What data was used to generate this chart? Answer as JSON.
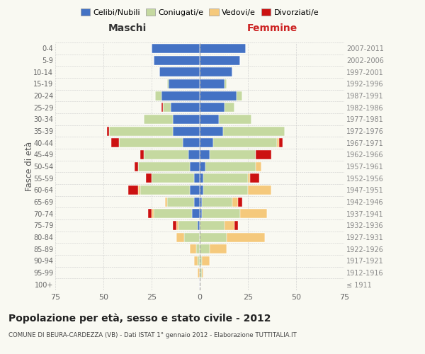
{
  "age_groups": [
    "100+",
    "95-99",
    "90-94",
    "85-89",
    "80-84",
    "75-79",
    "70-74",
    "65-69",
    "60-64",
    "55-59",
    "50-54",
    "45-49",
    "40-44",
    "35-39",
    "30-34",
    "25-29",
    "20-24",
    "15-19",
    "10-14",
    "5-9",
    "0-4"
  ],
  "birth_years": [
    "≤ 1911",
    "1912-1916",
    "1917-1921",
    "1922-1926",
    "1927-1931",
    "1932-1936",
    "1937-1941",
    "1942-1946",
    "1947-1951",
    "1952-1956",
    "1957-1961",
    "1962-1966",
    "1967-1971",
    "1972-1976",
    "1977-1981",
    "1982-1986",
    "1987-1991",
    "1992-1996",
    "1997-2001",
    "2002-2006",
    "2007-2011"
  ],
  "colors": {
    "celibe": "#4472c4",
    "coniugato": "#c5d9a0",
    "vedovo": "#f5c97c",
    "divorziato": "#cc1111"
  },
  "maschi": {
    "celibe": [
      0,
      0,
      0,
      0,
      0,
      1,
      4,
      3,
      5,
      3,
      5,
      6,
      9,
      14,
      14,
      15,
      20,
      16,
      21,
      24,
      25
    ],
    "coniugato": [
      0,
      0,
      1,
      2,
      8,
      10,
      20,
      14,
      26,
      22,
      27,
      23,
      33,
      33,
      15,
      4,
      3,
      1,
      0,
      0,
      0
    ],
    "vedovo": [
      0,
      1,
      2,
      3,
      4,
      1,
      1,
      1,
      1,
      0,
      0,
      0,
      0,
      0,
      0,
      0,
      0,
      0,
      0,
      0,
      0
    ],
    "divorziato": [
      0,
      0,
      0,
      0,
      0,
      2,
      2,
      0,
      5,
      3,
      2,
      2,
      4,
      1,
      0,
      1,
      0,
      0,
      0,
      0,
      0
    ]
  },
  "femmine": {
    "celibe": [
      0,
      0,
      0,
      0,
      0,
      0,
      1,
      1,
      2,
      2,
      3,
      5,
      7,
      12,
      10,
      13,
      19,
      13,
      17,
      21,
      24
    ],
    "coniugato": [
      0,
      1,
      1,
      5,
      14,
      13,
      20,
      16,
      23,
      23,
      26,
      24,
      33,
      32,
      17,
      5,
      3,
      1,
      0,
      0,
      0
    ],
    "vedovo": [
      0,
      1,
      4,
      9,
      20,
      5,
      14,
      3,
      12,
      1,
      3,
      0,
      1,
      0,
      0,
      0,
      0,
      0,
      0,
      0,
      0
    ],
    "divorziato": [
      0,
      0,
      0,
      0,
      0,
      2,
      0,
      2,
      0,
      5,
      0,
      8,
      2,
      0,
      0,
      0,
      0,
      0,
      0,
      0,
      0
    ]
  },
  "xlim": 75,
  "title": "Popolazione per età, sesso e stato civile - 2012",
  "subtitle": "COMUNE DI BEURA-CARDEZZA (VB) - Dati ISTAT 1° gennaio 2012 - Elaborazione TUTTITALIA.IT",
  "ylabel_left": "Fasce di età",
  "xlabel_maschi": "Maschi",
  "xlabel_femmine": "Femmine",
  "bg_color": "#f9f9f2",
  "grid_color": "#cccccc"
}
